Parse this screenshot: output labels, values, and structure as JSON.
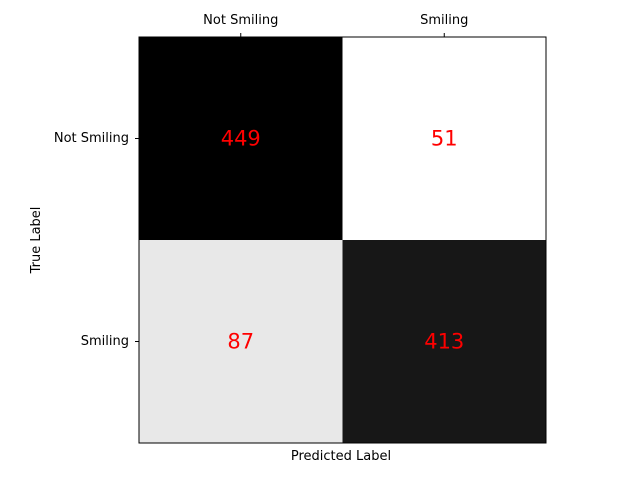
{
  "chart_data": {
    "type": "heatmap",
    "xlabel": "Predicted Label",
    "ylabel": "True Label",
    "x_categories": [
      "Not Smiling",
      "Smiling"
    ],
    "y_categories": [
      "Not Smiling",
      "Smiling"
    ],
    "values": [
      [
        449,
        51
      ],
      [
        87,
        413
      ]
    ],
    "x_ticks_position": "top",
    "colormap": "grayscale-reversed",
    "value_label_color": "#ff0000",
    "grid": false
  }
}
